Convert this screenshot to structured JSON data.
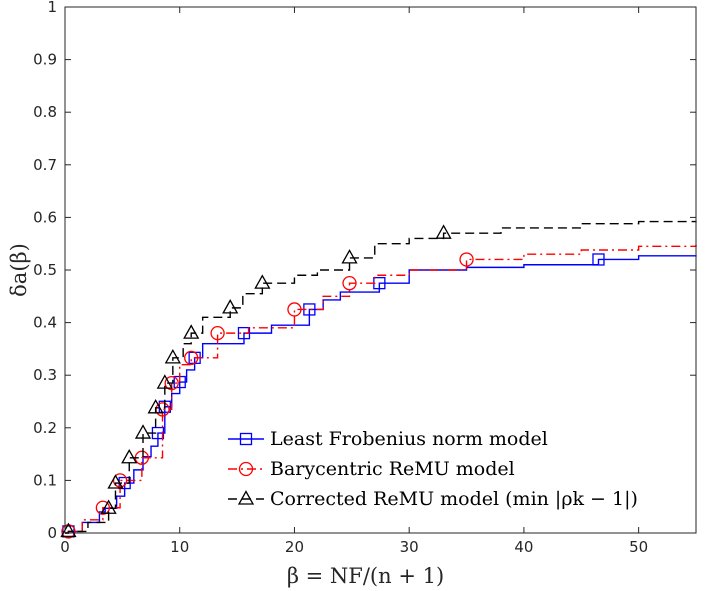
{
  "chart_data": {
    "type": "line",
    "title": "",
    "xlabel": "β = NF/(n + 1)",
    "ylabel": "δa(β)",
    "xlim": [
      0,
      55
    ],
    "ylim": [
      0,
      1
    ],
    "xticks": [
      0,
      10,
      20,
      30,
      40,
      50
    ],
    "yticks": [
      0,
      0.1,
      0.2,
      0.3,
      0.4,
      0.5,
      0.6,
      0.7,
      0.8,
      0.9,
      1
    ],
    "grid": false,
    "legend_position": "bottom-right",
    "series": [
      {
        "name": "Least Frobenius norm model",
        "color": "#0000ff",
        "line_style": "solid",
        "marker": "square",
        "x": [
          0,
          0.3,
          1.5,
          3.0,
          3.5,
          4.5,
          5.2,
          6.0,
          6.8,
          7.5,
          8.1,
          8.7,
          9.3,
          10.0,
          10.6,
          11.3,
          12.0,
          15.6,
          18.0,
          21.3,
          22.5,
          24.0,
          27.4,
          30.0,
          35.0,
          40.0,
          46.5,
          50.0,
          55.0
        ],
        "y": [
          0,
          0.003,
          0.02,
          0.04,
          0.047,
          0.07,
          0.095,
          0.12,
          0.145,
          0.165,
          0.19,
          0.24,
          0.265,
          0.287,
          0.31,
          0.333,
          0.36,
          0.38,
          0.395,
          0.425,
          0.443,
          0.458,
          0.475,
          0.5,
          0.505,
          0.51,
          0.52,
          0.527,
          0.528
        ],
        "marker_x": [
          0.3,
          5.2,
          8.1,
          8.7,
          10.0,
          11.3,
          15.6,
          21.3,
          27.4,
          46.5
        ],
        "marker_y": [
          0.003,
          0.095,
          0.19,
          0.24,
          0.287,
          0.333,
          0.38,
          0.425,
          0.475,
          0.52
        ]
      },
      {
        "name": "Barycentric ReMU model",
        "color": "#ff0000",
        "line_style": "dashdot",
        "marker": "circle",
        "x": [
          0,
          0.3,
          1.5,
          3.3,
          4.8,
          6.7,
          8.5,
          9.3,
          10.0,
          11.0,
          13.3,
          16.0,
          20.0,
          22.5,
          24.8,
          27.0,
          30.0,
          35.0,
          40.0,
          45.0,
          50.0,
          55.0
        ],
        "y": [
          0,
          0.003,
          0.025,
          0.048,
          0.1,
          0.143,
          0.235,
          0.285,
          0.32,
          0.333,
          0.38,
          0.39,
          0.425,
          0.45,
          0.475,
          0.49,
          0.5,
          0.52,
          0.53,
          0.538,
          0.545,
          0.548
        ],
        "marker_x": [
          0.3,
          3.3,
          4.8,
          6.7,
          8.5,
          9.3,
          11.0,
          13.3,
          20.0,
          24.8,
          35.0
        ],
        "marker_y": [
          0.003,
          0.048,
          0.1,
          0.143,
          0.235,
          0.285,
          0.333,
          0.38,
          0.425,
          0.475,
          0.52
        ]
      },
      {
        "name": "Corrected ReMU model (min |ρk − 1|)",
        "color": "#000000",
        "line_style": "dashed",
        "marker": "triangle",
        "x": [
          0,
          0.3,
          2.0,
          3.8,
          4.4,
          5.6,
          6.8,
          7.9,
          8.7,
          9.4,
          10.3,
          11.0,
          12.0,
          14.4,
          15.5,
          17.2,
          20.0,
          22.0,
          24.8,
          27.0,
          30.0,
          33.0,
          38.0,
          45.0,
          50.0,
          55.0
        ],
        "y": [
          0,
          0.003,
          0.02,
          0.047,
          0.095,
          0.143,
          0.19,
          0.238,
          0.285,
          0.333,
          0.36,
          0.38,
          0.41,
          0.428,
          0.455,
          0.475,
          0.49,
          0.5,
          0.523,
          0.55,
          0.56,
          0.57,
          0.58,
          0.588,
          0.592,
          0.593
        ],
        "marker_x": [
          0.3,
          3.8,
          4.4,
          5.6,
          6.8,
          7.9,
          8.7,
          9.4,
          11.0,
          14.4,
          17.2,
          24.8,
          33.0
        ],
        "marker_y": [
          0.003,
          0.047,
          0.095,
          0.143,
          0.19,
          0.238,
          0.285,
          0.333,
          0.38,
          0.428,
          0.475,
          0.523,
          0.57
        ]
      }
    ]
  }
}
